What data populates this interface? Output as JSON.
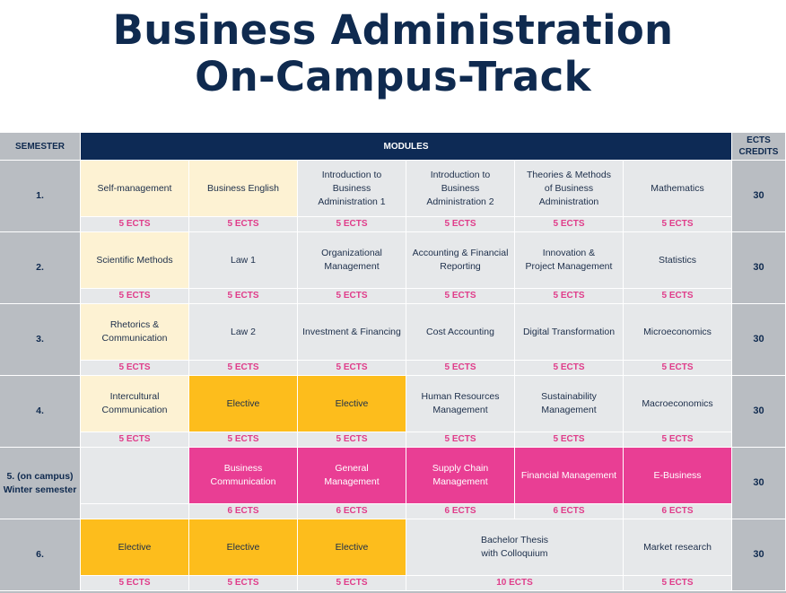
{
  "title": {
    "line1": "Business Administration",
    "line2": "On-Campus-Track"
  },
  "header": {
    "semester": "SEMESTER",
    "modules": "MODULES",
    "ects_credits": "ECTS\nCREDITS"
  },
  "colors": {
    "navy": "#0d2a55",
    "grey": "#e6e8ea",
    "cream": "#fdf2d3",
    "orange": "#fdbd1c",
    "pink": "#e93e94",
    "ects_text": "#e03c8a"
  },
  "semesters": [
    {
      "label": "1.",
      "total": "30",
      "modules": [
        {
          "name": "Self-management",
          "ects": "5 ECTS",
          "style": "cream"
        },
        {
          "name": "Business English",
          "ects": "5 ECTS",
          "style": "cream"
        },
        {
          "name": "Introduction to\nBusiness\nAdministration 1",
          "ects": "5 ECTS",
          "style": "grey"
        },
        {
          "name": "Introduction to\nBusiness\nAdministration 2",
          "ects": "5 ECTS",
          "style": "grey"
        },
        {
          "name": "Theories & Methods\nof Business\nAdministration",
          "ects": "5 ECTS",
          "style": "grey"
        },
        {
          "name": "Mathematics",
          "ects": "5 ECTS",
          "style": "grey"
        }
      ]
    },
    {
      "label": "2.",
      "total": "30",
      "modules": [
        {
          "name": "Scientific Methods",
          "ects": "5 ECTS",
          "style": "cream"
        },
        {
          "name": "Law 1",
          "ects": "5 ECTS",
          "style": "grey"
        },
        {
          "name": "Organizational\nManagement",
          "ects": "5 ECTS",
          "style": "grey"
        },
        {
          "name": "Accounting & Financial\nReporting",
          "ects": "5 ECTS",
          "style": "grey"
        },
        {
          "name": "Innovation &\nProject Management",
          "ects": "5 ECTS",
          "style": "grey"
        },
        {
          "name": "Statistics",
          "ects": "5 ECTS",
          "style": "grey"
        }
      ]
    },
    {
      "label": "3.",
      "total": "30",
      "modules": [
        {
          "name": "Rhetorics &\nCommunication",
          "ects": "5 ECTS",
          "style": "cream"
        },
        {
          "name": "Law 2",
          "ects": "5 ECTS",
          "style": "grey"
        },
        {
          "name": "Investment & Financing",
          "ects": "5 ECTS",
          "style": "grey"
        },
        {
          "name": "Cost Accounting",
          "ects": "5 ECTS",
          "style": "grey"
        },
        {
          "name": "Digital Transformation",
          "ects": "5 ECTS",
          "style": "grey"
        },
        {
          "name": "Microeconomics",
          "ects": "5 ECTS",
          "style": "grey"
        }
      ]
    },
    {
      "label": "4.",
      "total": "30",
      "modules": [
        {
          "name": "Intercultural\nCommunication",
          "ects": "5 ECTS",
          "style": "cream"
        },
        {
          "name": "Elective",
          "ects": "5 ECTS",
          "style": "orange"
        },
        {
          "name": "Elective",
          "ects": "5 ECTS",
          "style": "orange"
        },
        {
          "name": "Human Resources\nManagement",
          "ects": "5 ECTS",
          "style": "grey"
        },
        {
          "name": "Sustainability\nManagement",
          "ects": "5 ECTS",
          "style": "grey"
        },
        {
          "name": "Macroeconomics",
          "ects": "5 ECTS",
          "style": "grey"
        }
      ]
    },
    {
      "label": "5. (on campus)\nWinter semester",
      "total": "30",
      "modules": [
        {
          "name": "",
          "ects": "",
          "style": "grey"
        },
        {
          "name": "Business\nCommunication",
          "ects": "6 ECTS",
          "style": "pink"
        },
        {
          "name": "General\nManagement",
          "ects": "6 ECTS",
          "style": "pink"
        },
        {
          "name": "Supply Chain\nManagement",
          "ects": "6 ECTS",
          "style": "pink"
        },
        {
          "name": "Financial Management",
          "ects": "6 ECTS",
          "style": "pink"
        },
        {
          "name": "E-Business",
          "ects": "6 ECTS",
          "style": "pink"
        }
      ]
    },
    {
      "label": "6.",
      "total": "30",
      "modules": [
        {
          "name": "Elective",
          "ects": "5 ECTS",
          "style": "orange"
        },
        {
          "name": "Elective",
          "ects": "5 ECTS",
          "style": "orange"
        },
        {
          "name": "Elective",
          "ects": "5 ECTS",
          "style": "orange"
        },
        {
          "name": "Bachelor Thesis\nwith Colloquium",
          "ects": "10 ECTS",
          "style": "grey",
          "span": 2
        },
        {
          "name": "Market research",
          "ects": "5 ECTS",
          "style": "grey"
        }
      ]
    }
  ]
}
